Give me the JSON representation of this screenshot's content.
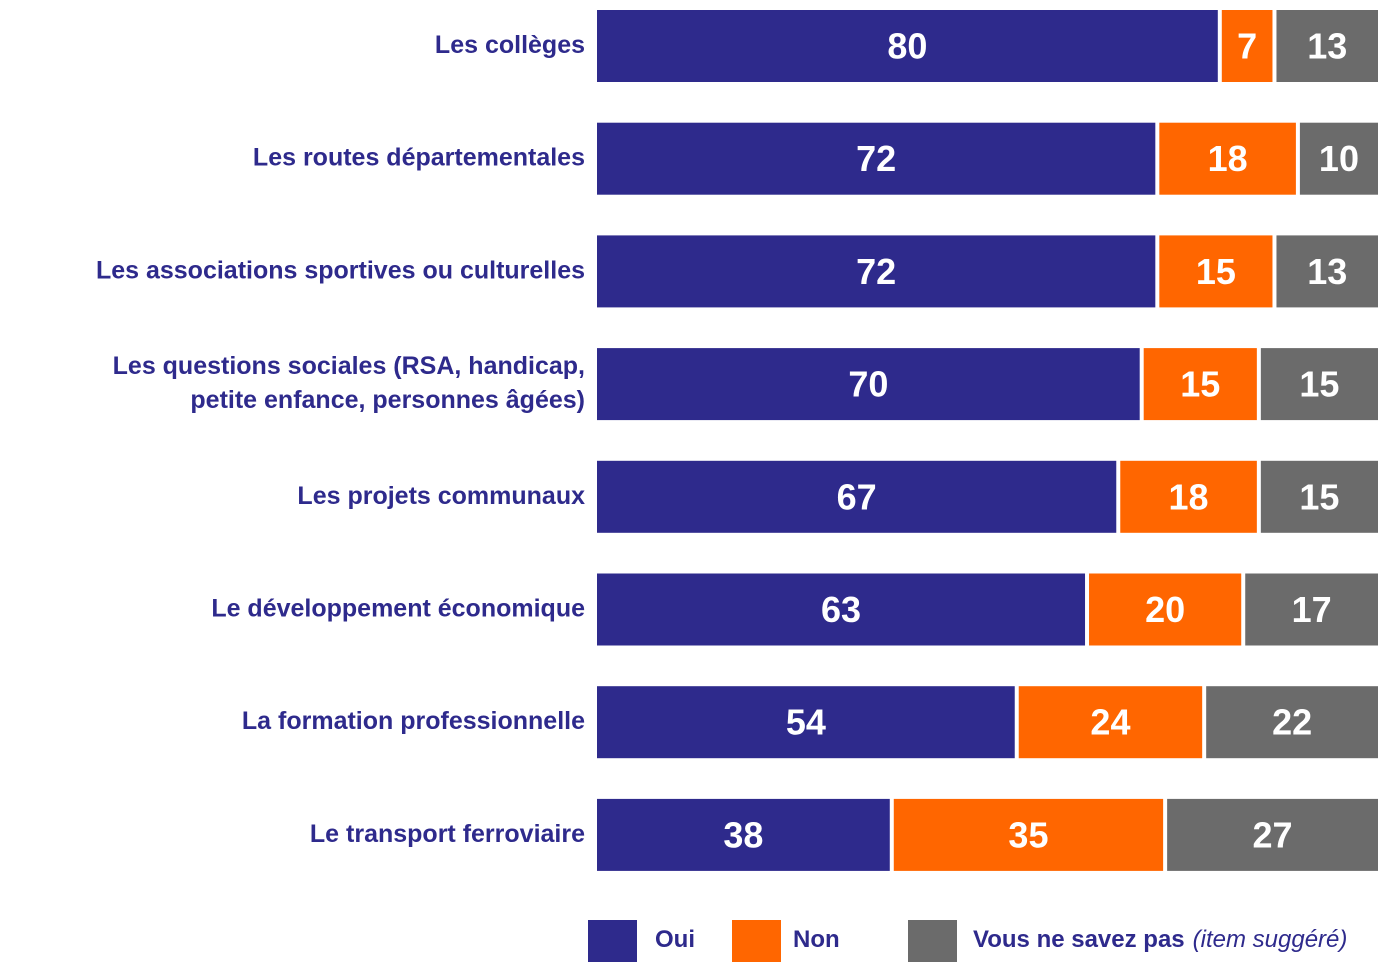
{
  "chart_data": {
    "type": "stacked-bar-horizontal",
    "categories": [
      "Les collèges",
      "Les routes départementales",
      "Les associations sportives ou culturelles",
      "Les questions sociales (RSA, handicap,\npetite enfance, personnes âgées)",
      "Les projets communaux",
      "Le développement économique",
      "La formation professionnelle",
      "Le transport ferroviaire"
    ],
    "series": [
      {
        "name": "Oui",
        "color": "#2e2a8c",
        "values": [
          80,
          72,
          72,
          70,
          67,
          63,
          54,
          38
        ]
      },
      {
        "name": "Non",
        "color": "#ff6600",
        "values": [
          7,
          18,
          15,
          15,
          18,
          20,
          24,
          35
        ]
      },
      {
        "name": "Vous ne savez pas",
        "color": "#6b6b6b",
        "values": [
          13,
          10,
          13,
          15,
          15,
          17,
          22,
          27
        ]
      }
    ],
    "legend_note": "(item suggéré)",
    "legend": "bottom"
  }
}
